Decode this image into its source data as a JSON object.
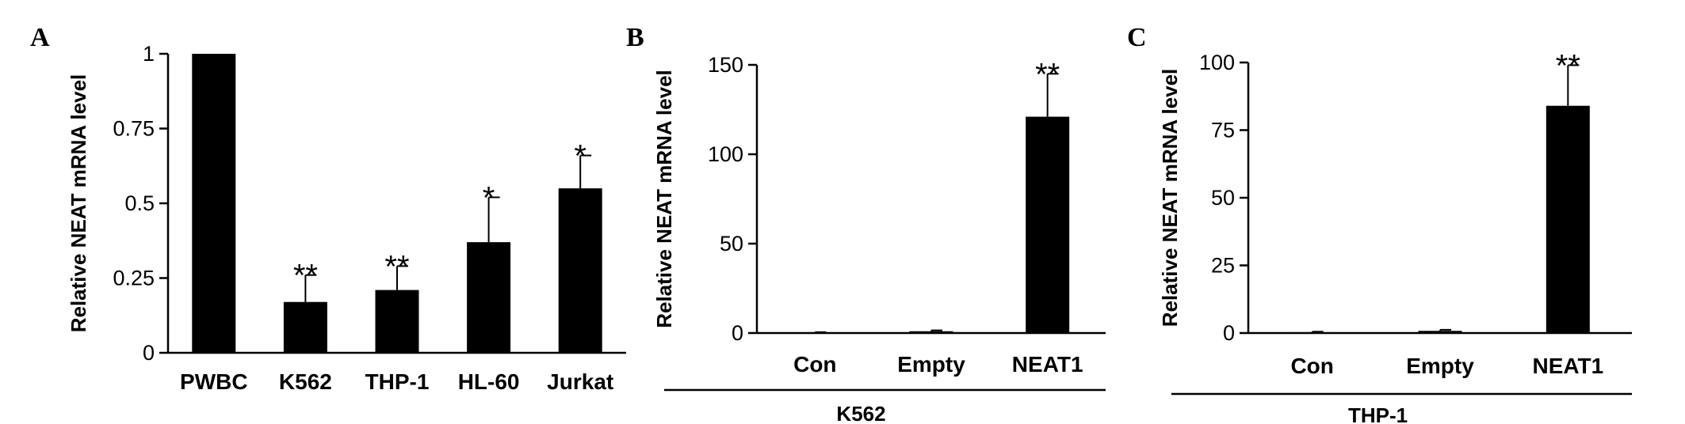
{
  "chart_data": [
    {
      "panel": "A",
      "type": "bar",
      "ylabel": "Relative NEAT mRNA level",
      "categories": [
        "PWBC",
        "K562",
        "THP-1",
        "HL-60",
        "Jurkat"
      ],
      "values": [
        1.0,
        0.17,
        0.21,
        0.37,
        0.55
      ],
      "errors": [
        0.0,
        0.09,
        0.08,
        0.15,
        0.11
      ],
      "significance": [
        "",
        "**",
        "**",
        "*",
        "*"
      ],
      "ylim": [
        0,
        1
      ],
      "yticks": [
        "0",
        "0.25",
        "0.5",
        "0.75",
        "1"
      ],
      "group_label": ""
    },
    {
      "panel": "B",
      "type": "bar",
      "ylabel": "Relative NEAT mRNA level",
      "categories": [
        "Con",
        "Empty",
        "NEAT1"
      ],
      "values": [
        0.3,
        1.0,
        121
      ],
      "errors": [
        0.2,
        0.5,
        24
      ],
      "significance": [
        "",
        "",
        "**"
      ],
      "ylim": [
        0,
        150
      ],
      "yticks": [
        "0",
        "50",
        "100",
        "150"
      ],
      "group_label": "K562"
    },
    {
      "panel": "C",
      "type": "bar",
      "ylabel": "Relative NEAT mRNA level",
      "categories": [
        "Con",
        "Empty",
        "NEAT1"
      ],
      "values": [
        0.3,
        0.8,
        84
      ],
      "errors": [
        0.2,
        0.4,
        15
      ],
      "significance": [
        "",
        "",
        "**"
      ],
      "ylim": [
        0,
        100
      ],
      "yticks": [
        "0",
        "25",
        "50",
        "75",
        "100"
      ],
      "group_label": "THP-1"
    }
  ]
}
